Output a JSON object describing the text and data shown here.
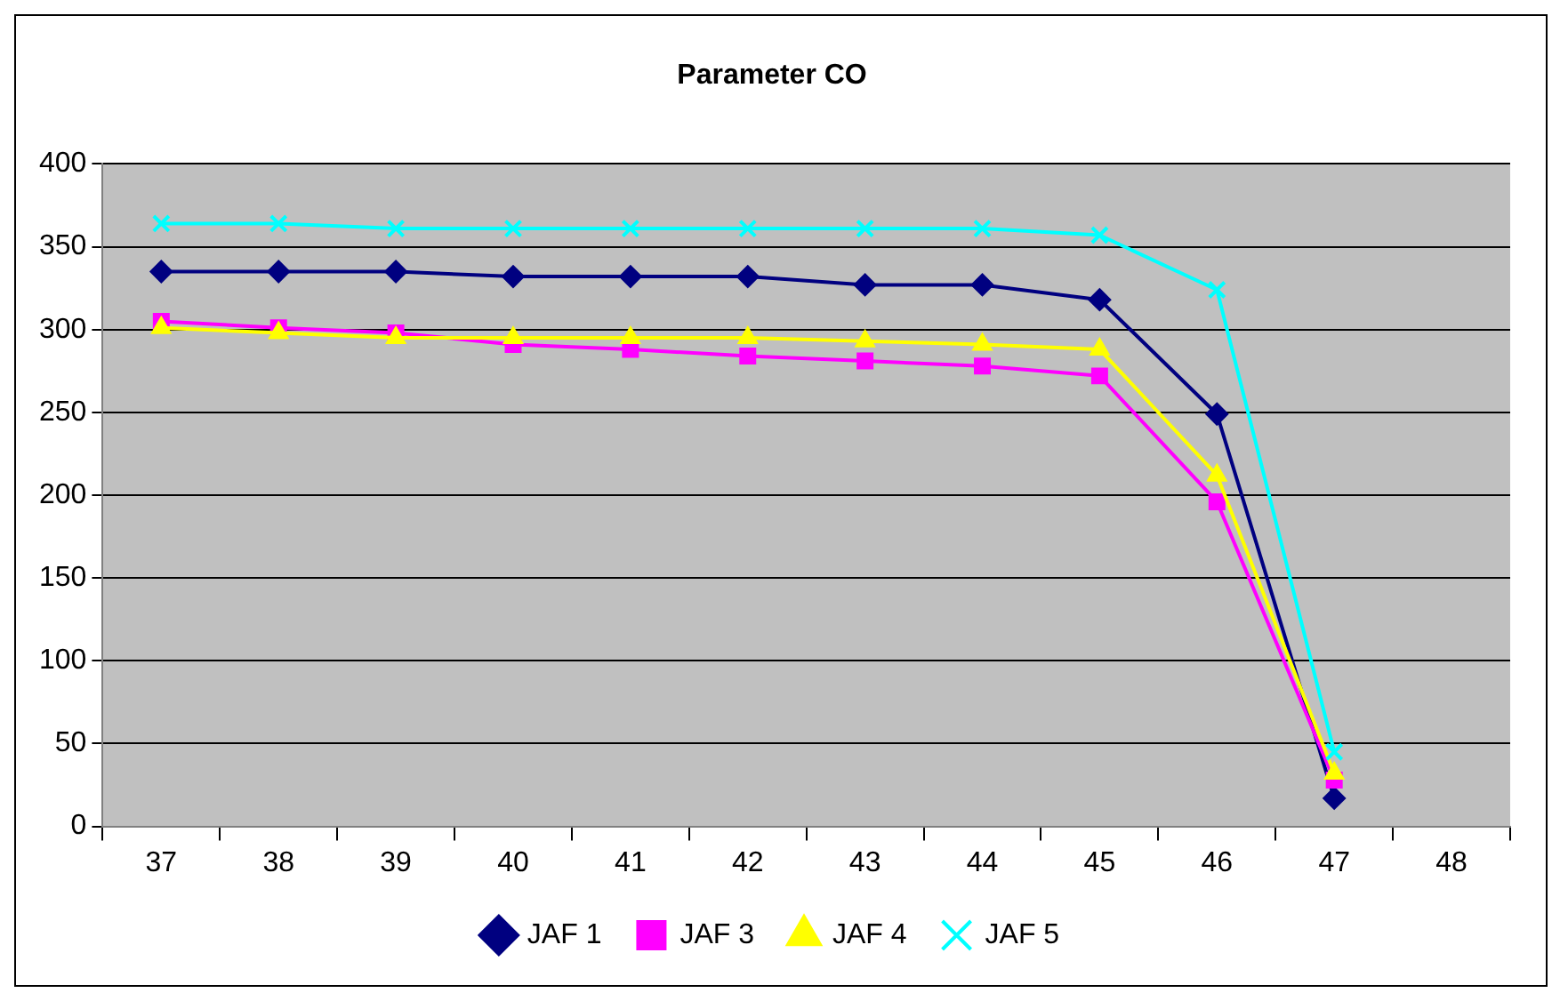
{
  "chart_data": {
    "type": "line",
    "title": "Parameter CO",
    "categories": [
      "37",
      "38",
      "39",
      "40",
      "41",
      "42",
      "43",
      "44",
      "45",
      "46",
      "47",
      "48"
    ],
    "series": [
      {
        "name": "JAF 1",
        "color": "#000080",
        "marker": "diamond",
        "values": [
          335,
          335,
          335,
          332,
          332,
          332,
          327,
          327,
          318,
          249,
          17,
          null
        ]
      },
      {
        "name": "JAF 3",
        "color": "#ff00ff",
        "marker": "square",
        "values": [
          305,
          301,
          298,
          291,
          288,
          284,
          281,
          278,
          272,
          196,
          28,
          null
        ]
      },
      {
        "name": "JAF 4",
        "color": "#ffff00",
        "marker": "triangle",
        "values": [
          301,
          298,
          295,
          295,
          295,
          295,
          293,
          291,
          288,
          212,
          32,
          null
        ]
      },
      {
        "name": "JAF 5",
        "color": "#00ffff",
        "marker": "cross",
        "values": [
          364,
          364,
          361,
          361,
          361,
          361,
          361,
          361,
          357,
          324,
          45,
          null
        ]
      }
    ],
    "ylim": [
      0,
      400
    ],
    "yticks": [
      0,
      50,
      100,
      150,
      200,
      250,
      300,
      350,
      400
    ],
    "grid": "y",
    "legend": "bottom",
    "line_style": "solid"
  }
}
